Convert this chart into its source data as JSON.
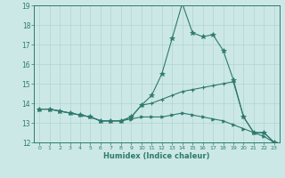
{
  "xlabel": "Humidex (Indice chaleur)",
  "x": [
    0,
    1,
    2,
    3,
    4,
    5,
    6,
    7,
    8,
    9,
    10,
    11,
    12,
    13,
    14,
    15,
    16,
    17,
    18,
    19,
    20,
    21,
    22,
    23
  ],
  "line1": [
    13.7,
    13.7,
    13.6,
    13.5,
    13.4,
    13.3,
    13.1,
    13.1,
    13.1,
    13.3,
    13.9,
    14.4,
    15.5,
    17.3,
    19.1,
    17.6,
    17.4,
    17.5,
    16.7,
    15.2,
    13.3,
    12.5,
    12.5,
    12.0
  ],
  "line2": [
    13.7,
    13.7,
    13.6,
    13.5,
    13.4,
    13.3,
    13.1,
    13.1,
    13.1,
    13.3,
    13.9,
    14.0,
    14.2,
    14.4,
    14.6,
    14.7,
    14.8,
    14.9,
    15.0,
    15.1,
    13.3,
    12.5,
    12.5,
    12.0
  ],
  "line3": [
    13.7,
    13.7,
    13.6,
    13.5,
    13.4,
    13.3,
    13.1,
    13.1,
    13.1,
    13.2,
    13.3,
    13.3,
    13.3,
    13.4,
    13.5,
    13.4,
    13.3,
    13.2,
    13.1,
    12.9,
    12.7,
    12.5,
    12.3,
    12.0
  ],
  "line_color": "#2d7a6e",
  "bg_color": "#cce8e6",
  "grid_color": "#b0d4d0",
  "ylim": [
    12,
    19
  ],
  "yticks": [
    12,
    13,
    14,
    15,
    16,
    17,
    18,
    19
  ],
  "xticks": [
    0,
    1,
    2,
    3,
    4,
    5,
    6,
    7,
    8,
    9,
    10,
    11,
    12,
    13,
    14,
    15,
    16,
    17,
    18,
    19,
    20,
    21,
    22,
    23
  ]
}
